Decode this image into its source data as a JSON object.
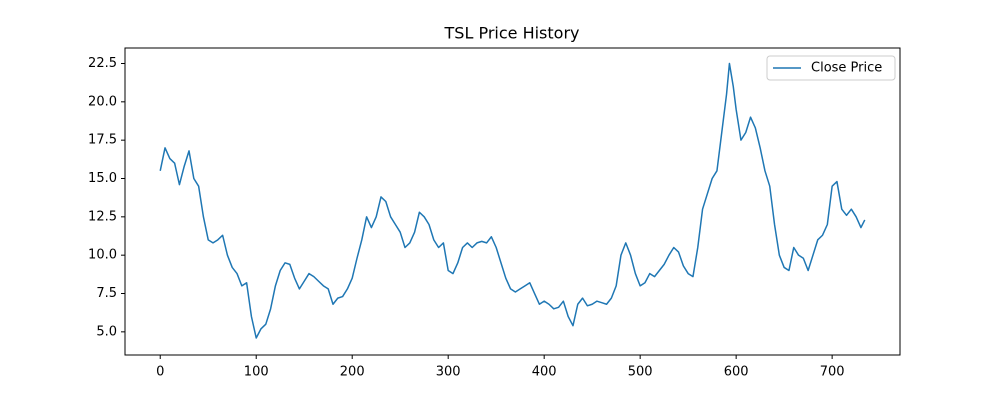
{
  "chart_data": {
    "type": "line",
    "title": "TSL Price History",
    "x": [
      0,
      5,
      10,
      15,
      20,
      25,
      30,
      35,
      40,
      45,
      50,
      55,
      60,
      65,
      70,
      75,
      80,
      85,
      90,
      95,
      100,
      105,
      110,
      115,
      120,
      125,
      130,
      135,
      140,
      145,
      150,
      155,
      160,
      165,
      170,
      175,
      180,
      185,
      190,
      195,
      200,
      205,
      210,
      215,
      220,
      225,
      230,
      235,
      240,
      245,
      250,
      255,
      260,
      265,
      270,
      275,
      280,
      285,
      290,
      295,
      300,
      305,
      310,
      315,
      320,
      325,
      330,
      335,
      340,
      345,
      350,
      355,
      360,
      365,
      370,
      375,
      380,
      385,
      390,
      395,
      400,
      405,
      410,
      415,
      420,
      425,
      430,
      435,
      440,
      445,
      450,
      455,
      460,
      465,
      470,
      475,
      480,
      485,
      490,
      495,
      500,
      505,
      510,
      515,
      520,
      525,
      530,
      535,
      540,
      545,
      550,
      555,
      560,
      565,
      570,
      575,
      580,
      585,
      590,
      593,
      597,
      600,
      605,
      610,
      615,
      620,
      625,
      630,
      635,
      640,
      645,
      650,
      655,
      660,
      665,
      670,
      675,
      680,
      685,
      690,
      695,
      700,
      705,
      710,
      715,
      720,
      725,
      730,
      734
    ],
    "series": [
      {
        "name": "Close Price",
        "color": "#1f77b4",
        "values": [
          15.5,
          17.0,
          16.3,
          16.0,
          14.6,
          15.8,
          16.8,
          15.0,
          14.5,
          12.5,
          11.0,
          10.8,
          11.0,
          11.3,
          10.0,
          9.2,
          8.8,
          8.0,
          8.2,
          6.0,
          4.6,
          5.2,
          5.5,
          6.5,
          8.0,
          9.0,
          9.5,
          9.4,
          8.5,
          7.8,
          8.3,
          8.8,
          8.6,
          8.3,
          8.0,
          7.8,
          6.8,
          7.2,
          7.3,
          7.8,
          8.5,
          9.8,
          11.0,
          12.5,
          11.8,
          12.5,
          13.8,
          13.5,
          12.5,
          12.0,
          11.5,
          10.5,
          10.8,
          11.5,
          12.8,
          12.5,
          12.0,
          11.0,
          10.5,
          10.8,
          9.0,
          8.8,
          9.5,
          10.5,
          10.8,
          10.5,
          10.8,
          10.9,
          10.8,
          11.2,
          10.5,
          9.5,
          8.5,
          7.8,
          7.6,
          7.8,
          8.0,
          8.2,
          7.5,
          6.8,
          7.0,
          6.8,
          6.5,
          6.6,
          7.0,
          6.0,
          5.4,
          6.8,
          7.2,
          6.7,
          6.8,
          7.0,
          6.9,
          6.8,
          7.2,
          8.0,
          10.0,
          10.8,
          10.0,
          8.8,
          8.0,
          8.2,
          8.8,
          8.6,
          9.0,
          9.4,
          10.0,
          10.5,
          10.2,
          9.3,
          8.8,
          8.6,
          10.5,
          13.0,
          14.0,
          15.0,
          15.5,
          18.0,
          20.5,
          22.5,
          21.0,
          19.5,
          17.5,
          18.0,
          19.0,
          18.3,
          17.0,
          15.5,
          14.5,
          12.0,
          10.0,
          9.2,
          9.0,
          10.5,
          10.0,
          9.8,
          9.0,
          10.0,
          11.0,
          11.3,
          12.0,
          14.5,
          14.8,
          13.0,
          12.6,
          13.0,
          12.5,
          11.8,
          12.3
        ]
      }
    ],
    "xlim": [
      -36.7,
      770.7
    ],
    "xticks": [
      0,
      100,
      200,
      300,
      400,
      500,
      600,
      700
    ],
    "ylim": [
      3.49,
      23.51
    ],
    "yticks": [
      {
        "value": 5,
        "label": "5.0"
      },
      7.5,
      {
        "value": 10,
        "label": "10.0"
      },
      12.5,
      {
        "value": 15,
        "label": "15.0"
      },
      17.5,
      {
        "value": 20,
        "label": "20.0"
      },
      22.5
    ],
    "legend": "upper right"
  }
}
